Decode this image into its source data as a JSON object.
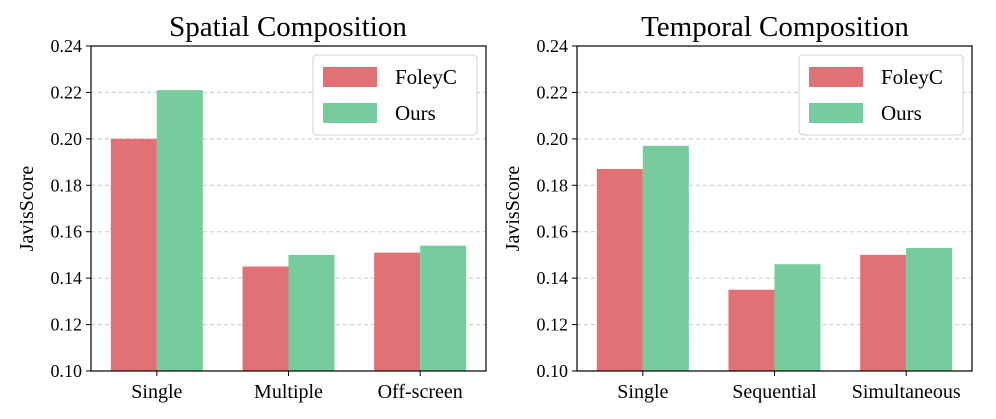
{
  "colors": {
    "FoleyC": "#e27175",
    "Ours": "#76cc9c"
  },
  "chart_data": [
    {
      "type": "bar",
      "title": "Spatial Composition",
      "xlabel": "",
      "ylabel": "JavisScore",
      "categories": [
        "Single",
        "Multiple",
        "Off-screen"
      ],
      "series": [
        {
          "name": "FoleyC",
          "values": [
            0.2,
            0.145,
            0.151
          ]
        },
        {
          "name": "Ours",
          "values": [
            0.221,
            0.15,
            0.154
          ]
        }
      ],
      "ylim": [
        0.1,
        0.24
      ],
      "yticks": [
        "0.10",
        "0.12",
        "0.14",
        "0.16",
        "0.18",
        "0.20",
        "0.22",
        "0.24"
      ],
      "grid": true,
      "legend": "top-right"
    },
    {
      "type": "bar",
      "title": "Temporal Composition",
      "xlabel": "",
      "ylabel": "JavisScore",
      "categories": [
        "Single",
        "Sequential",
        "Simultaneous"
      ],
      "series": [
        {
          "name": "FoleyC",
          "values": [
            0.187,
            0.135,
            0.15
          ]
        },
        {
          "name": "Ours",
          "values": [
            0.197,
            0.146,
            0.153
          ]
        }
      ],
      "ylim": [
        0.1,
        0.24
      ],
      "yticks": [
        "0.10",
        "0.12",
        "0.14",
        "0.16",
        "0.18",
        "0.20",
        "0.22",
        "0.24"
      ],
      "grid": true,
      "legend": "top-right"
    }
  ]
}
